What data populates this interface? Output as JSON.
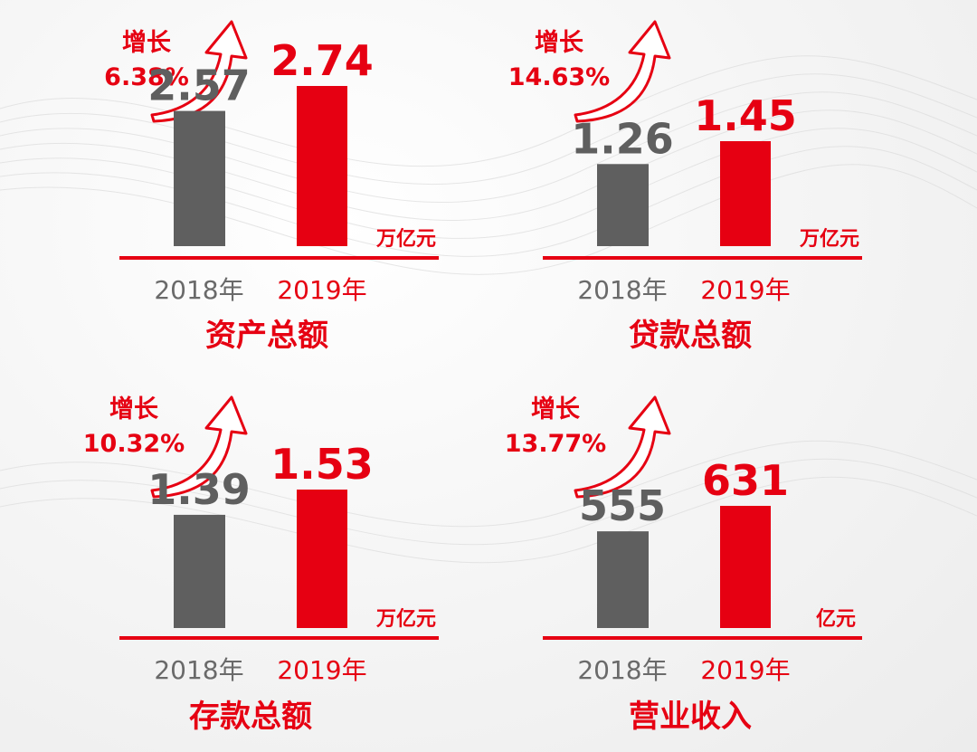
{
  "colors": {
    "accent": "#e60012",
    "neutral": "#5f5f5f",
    "year2018": "#6a6a6a"
  },
  "icons": {
    "growth_arrow": "curved-up-arrow-icon"
  },
  "chart_data": [
    {
      "type": "bar",
      "title": "资产总额",
      "categories": [
        "2018年",
        "2019年"
      ],
      "values": [
        2.57,
        2.74
      ],
      "labels": [
        "2.57",
        "2.74"
      ],
      "unit": "万亿元",
      "growth_label": "增长",
      "growth_value": "6.38%"
    },
    {
      "type": "bar",
      "title": "贷款总额",
      "categories": [
        "2018年",
        "2019年"
      ],
      "values": [
        1.26,
        1.45
      ],
      "labels": [
        "1.26",
        "1.45"
      ],
      "unit": "万亿元",
      "growth_label": "增长",
      "growth_value": "14.63%"
    },
    {
      "type": "bar",
      "title": "存款总额",
      "categories": [
        "2018年",
        "2019年"
      ],
      "values": [
        1.39,
        1.53
      ],
      "labels": [
        "1.39",
        "1.53"
      ],
      "unit": "万亿元",
      "growth_label": "增长",
      "growth_value": "10.32%"
    },
    {
      "type": "bar",
      "title": "营业收入",
      "categories": [
        "2018年",
        "2019年"
      ],
      "values": [
        555,
        631
      ],
      "labels": [
        "555",
        "631"
      ],
      "unit": "亿元",
      "growth_label": "增长",
      "growth_value": "13.77%"
    }
  ]
}
